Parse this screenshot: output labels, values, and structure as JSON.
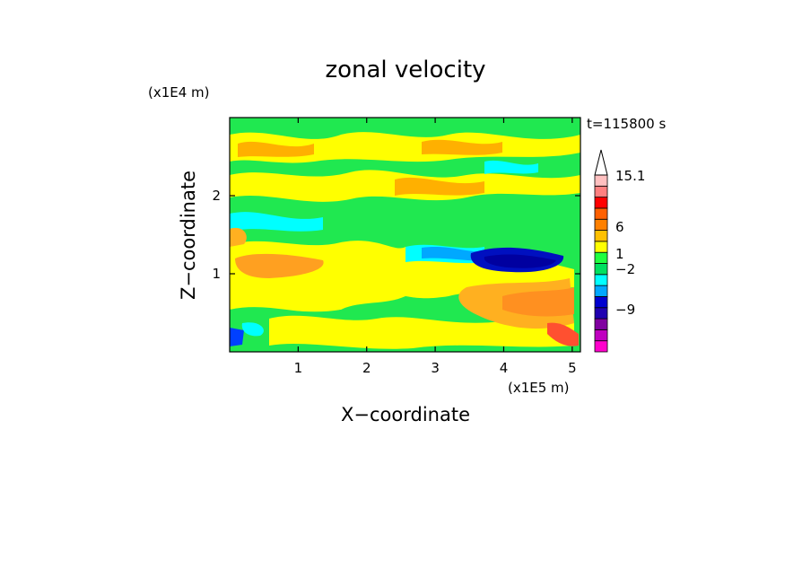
{
  "chart_data": {
    "type": "heatmap",
    "title": "zonal velocity",
    "xlabel": "X−coordinate",
    "ylabel": "Z−coordinate",
    "x_scale_label": "(x1E5 m)",
    "y_scale_label": "(x1E4 m)",
    "time_label": "t=115800 s",
    "xlim": [
      0,
      5.12
    ],
    "ylim": [
      0,
      3.0
    ],
    "x_ticks": [
      1,
      2,
      3,
      4,
      5
    ],
    "y_ticks": [
      1,
      2
    ],
    "colorbar": {
      "levels": [
        {
          "color": "#ff00cc"
        },
        {
          "color": "#c000c0"
        },
        {
          "color": "#8000a0"
        },
        {
          "color": "#2000b0"
        },
        {
          "color": "#0000d0"
        },
        {
          "color": "#00a8ff"
        },
        {
          "color": "#00ffff"
        },
        {
          "color": "#00e060"
        },
        {
          "color": "#20ff40"
        },
        {
          "color": "#ffff00"
        },
        {
          "color": "#ffc000"
        },
        {
          "color": "#ff8000"
        },
        {
          "color": "#ff6000"
        },
        {
          "color": "#ff0000"
        },
        {
          "color": "#ff8080"
        },
        {
          "color": "#ffc0c0"
        }
      ],
      "tick_labels": [
        "15.1",
        "6",
        "1",
        "−2",
        "−9"
      ],
      "tick_values": [
        15.1,
        6,
        1,
        -2,
        -9
      ]
    },
    "grid": false,
    "legend": "right"
  }
}
